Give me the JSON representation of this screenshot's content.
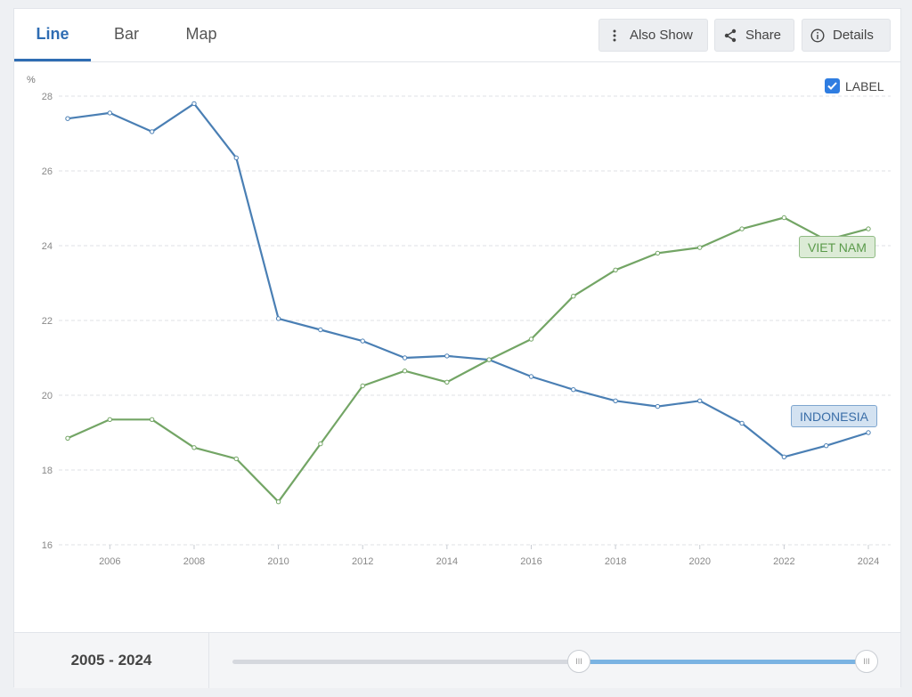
{
  "tabs": [
    {
      "label": "Line",
      "active": true
    },
    {
      "label": "Bar",
      "active": false
    },
    {
      "label": "Map",
      "active": false
    }
  ],
  "toolbar": {
    "also_show": "Also Show",
    "share": "Share",
    "details": "Details"
  },
  "label_toggle": {
    "text": "LABEL",
    "checked": true
  },
  "range": {
    "start": "2005",
    "sep": "-",
    "end": "2024"
  },
  "slider": {
    "handle_glyph": "III"
  },
  "colors": {
    "indonesia": "#4a7fb4",
    "vietnam": "#73a565",
    "accent": "#2f6db3"
  },
  "chart_data": {
    "type": "line",
    "unit_label": "%",
    "x": [
      2005,
      2006,
      2007,
      2008,
      2009,
      2010,
      2011,
      2012,
      2013,
      2014,
      2015,
      2016,
      2017,
      2018,
      2019,
      2020,
      2021,
      2022,
      2023,
      2024
    ],
    "xticks": [
      "2006",
      "2008",
      "2010",
      "2012",
      "2014",
      "2016",
      "2018",
      "2020",
      "2022",
      "2024"
    ],
    "yticks": [
      "16",
      "18",
      "20",
      "22",
      "24",
      "26",
      "28"
    ],
    "ylim": [
      16,
      28
    ],
    "xlim": [
      2005,
      2024
    ],
    "grid": true,
    "series": [
      {
        "name": "INDONESIA",
        "color": "#4a7fb4",
        "values": [
          27.4,
          27.55,
          27.05,
          27.8,
          26.35,
          22.05,
          21.75,
          21.45,
          21.0,
          21.05,
          20.95,
          20.5,
          20.15,
          19.85,
          19.7,
          19.85,
          19.25,
          18.35,
          18.65,
          19.0
        ]
      },
      {
        "name": "VIET NAM",
        "color": "#73a565",
        "values": [
          18.85,
          19.35,
          19.35,
          18.6,
          18.3,
          17.15,
          18.7,
          20.25,
          20.65,
          20.35,
          20.95,
          21.5,
          22.65,
          23.35,
          23.8,
          23.95,
          24.45,
          24.75,
          24.15,
          24.45
        ]
      }
    ]
  }
}
